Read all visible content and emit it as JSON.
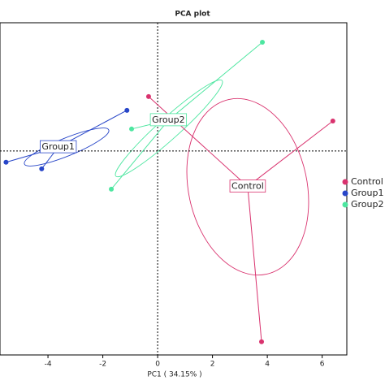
{
  "chart_data": {
    "type": "scatter",
    "title": "PCA plot",
    "x_label": "PC1 ( 34.15% )",
    "xlim": [
      -5.75,
      6.9
    ],
    "ylim": [
      -7.43,
      4.67
    ],
    "xticks": [
      -4,
      -2,
      0,
      2,
      4,
      6
    ],
    "series": [
      {
        "name": "Control",
        "color": "#d9326e",
        "x": [
          -0.33,
          6.39,
          3.79
        ],
        "values": [
          1.98,
          1.09,
          -6.95
        ]
      },
      {
        "name": "Group1",
        "color": "#2846c8",
        "x": [
          -1.12,
          -5.53,
          -4.23
        ],
        "values": [
          1.48,
          -0.41,
          -0.65
        ]
      },
      {
        "name": "Group2",
        "color": "#4de6a0",
        "x": [
          3.82,
          -0.95,
          -1.69
        ],
        "values": [
          3.96,
          0.8,
          -1.39
        ]
      }
    ]
  }
}
